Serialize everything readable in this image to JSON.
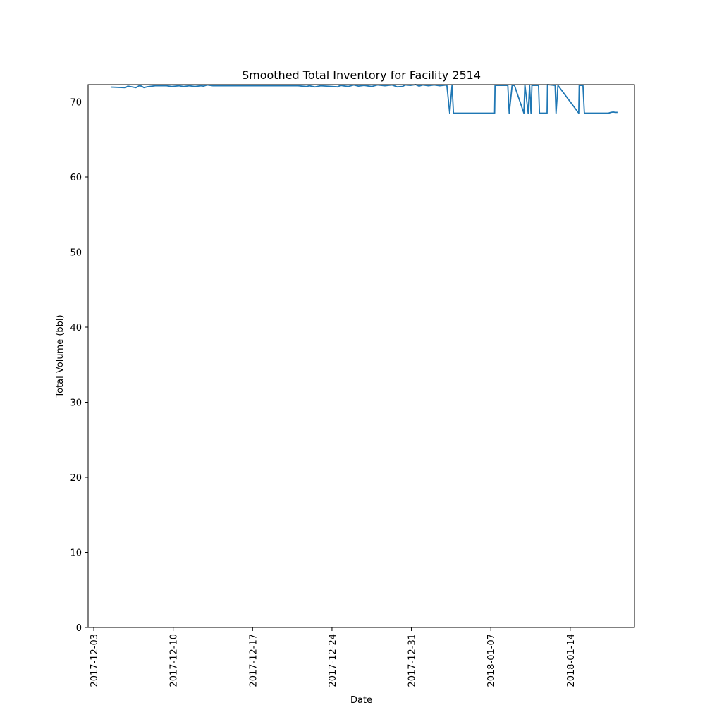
{
  "chart_data": {
    "type": "line",
    "title": "Smoothed Total Inventory for Facility 2514",
    "xlabel": "Date",
    "ylabel": "Total Volume (bbl)",
    "ylim": [
      0,
      72.3
    ],
    "xlim": [
      "2017-12-02 12:00",
      "2018-01-19 16:00"
    ],
    "yticks": [
      0,
      10,
      20,
      30,
      40,
      50,
      60,
      70
    ],
    "xticks": [
      "2017-12-03",
      "2017-12-10",
      "2017-12-17",
      "2017-12-24",
      "2017-12-31",
      "2018-01-07",
      "2018-01-14"
    ],
    "grid": false,
    "color": "#1f77b4",
    "series": [
      {
        "x": [
          "2017-12-04 12:00",
          "2017-12-05 19:00",
          "2017-12-06 00:00",
          "2017-12-06 17:00",
          "2017-12-07 00:00",
          "2017-12-07 05:00",
          "2017-12-07 10:00",
          "2017-12-07 16:00",
          "2017-12-08 10:00",
          "2017-12-09 10:00",
          "2017-12-09 21:00",
          "2017-12-10 12:00",
          "2017-12-10 22:00",
          "2017-12-11 10:00",
          "2017-12-11 22:00",
          "2017-12-12 10:00",
          "2017-12-12 16:00",
          "2017-12-13 00:00",
          "2017-12-13 12:00",
          "2017-12-14 06:00",
          "2017-12-17 00:00",
          "2017-12-21 00:00",
          "2017-12-21 18:00",
          "2017-12-22 00:00",
          "2017-12-22 12:00",
          "2017-12-23 00:00",
          "2017-12-23 12:00",
          "2017-12-24 12:00",
          "2017-12-24 18:00",
          "2017-12-25 10:00",
          "2017-12-25 22:00",
          "2017-12-26 08:00",
          "2017-12-26 20:00",
          "2017-12-27 12:00",
          "2017-12-28 00:00",
          "2017-12-28 16:00",
          "2017-12-29 07:00",
          "2017-12-29 18:00",
          "2017-12-30 05:00",
          "2017-12-30 11:00",
          "2017-12-30 22:00",
          "2017-12-31 09:00",
          "2017-12-31 16:00",
          "2018-01-01 00:00",
          "2018-01-01 12:00",
          "2018-01-02 00:00",
          "2018-01-02 12:00",
          "2018-01-03 03:00",
          "2018-01-03 09:00",
          "2018-01-03 14:00",
          "2018-01-03 17:00",
          "2018-01-07 08:00",
          "2018-01-07 09:00",
          "2018-01-08 12:00",
          "2018-01-08 15:00",
          "2018-01-08 21:00",
          "2018-01-09 02:00",
          "2018-01-09 22:00",
          "2018-01-10 00:00",
          "2018-01-10 07:00",
          "2018-01-10 10:00",
          "2018-01-10 13:00",
          "2018-01-10 15:00",
          "2018-01-11 05:00",
          "2018-01-11 07:00",
          "2018-01-11 23:00",
          "2018-01-12 00:00",
          "2018-01-12 16:00",
          "2018-01-12 18:00",
          "2018-01-12 22:00",
          "2018-01-14 18:00",
          "2018-01-14 19:00",
          "2018-01-15 03:00",
          "2018-01-15 06:00",
          "2018-01-17 09:00",
          "2018-01-17 14:00",
          "2018-01-17 19:00",
          "2018-01-17 23:00",
          "2018-01-18 04:00"
        ],
        "y": [
          71.97,
          71.9,
          72.1,
          71.9,
          72.15,
          72.1,
          71.9,
          72.0,
          72.15,
          72.15,
          72.05,
          72.15,
          72.05,
          72.15,
          72.05,
          72.15,
          72.1,
          72.25,
          72.15,
          72.15,
          72.15,
          72.15,
          72.05,
          72.15,
          72.0,
          72.15,
          72.1,
          72.0,
          72.2,
          72.05,
          72.25,
          72.1,
          72.2,
          72.05,
          72.25,
          72.15,
          72.25,
          72.0,
          72.05,
          72.25,
          72.2,
          72.3,
          72.1,
          72.25,
          72.15,
          72.25,
          72.15,
          72.25,
          68.5,
          72.2,
          68.5,
          68.5,
          72.2,
          72.2,
          68.5,
          72.2,
          72.2,
          68.5,
          72.3,
          68.5,
          72.2,
          68.5,
          72.2,
          72.2,
          68.5,
          68.5,
          72.3,
          72.2,
          68.5,
          72.2,
          68.5,
          72.2,
          72.2,
          68.5,
          68.5,
          68.6,
          68.65,
          68.6,
          68.6
        ]
      }
    ]
  }
}
